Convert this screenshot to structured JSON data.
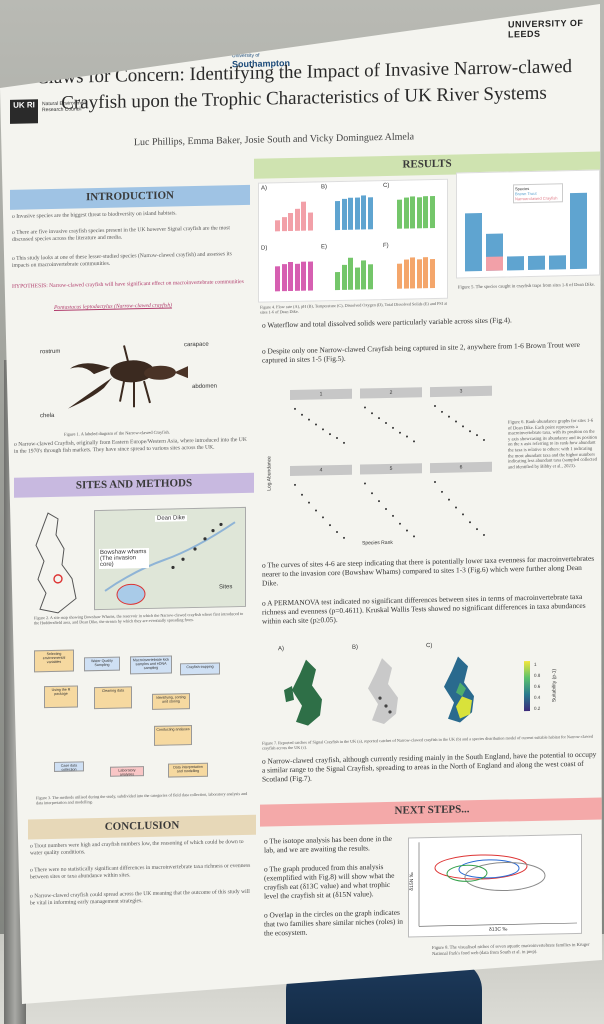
{
  "header": {
    "ukri": "UK RI",
    "nerc": "Natural Environment Research Council",
    "southampton_top": "University of",
    "southampton": "Southampton",
    "leeds": "UNIVERSITY OF LEEDS"
  },
  "title_line1": "Claws for Concern: Identifying the Impact of Invasive Narrow-clawed",
  "title_line2": "Crayfish upon the Trophic Characteristics of UK River Systems",
  "authors": "Luc Phillips, Emma Baker, Josie South and Vicky Dominguez Almela",
  "sections": {
    "introduction": "INTRODUCTION",
    "results": "RESULTS",
    "sites_methods": "SITES AND METHODS",
    "conclusion": "CONCLUSION",
    "next_steps": "NEXT STEPS..."
  },
  "intro": {
    "p1": "o Invasive species are the biggest threat to biodiversity on island habitats.",
    "p2": "o There are five invasive crayfish species present in the UK however Signal crayfish are the most discussed species across the literature and media.",
    "p3": "o This study looks at one of these lesser-studied species (Narrow-clawed crayfish) and assesses its impacts on macroinvertebrate communities.",
    "hypothesis": "HYPOTHESIS: Narrow-clawed crayfish will have significant effect on macroinvertebrate communities",
    "species": "Pontastacus leptodactylus (Narrow-clawed crayfish)",
    "labels": {
      "rostrum": "rostrum",
      "carapace": "carapace",
      "abdomen": "abdomen",
      "chela": "chela"
    },
    "fig1": "Figure 1. A labeled diagram of the Narrow-clawed Crayfish.",
    "p4": "o Narrow-clawed Crayfish, originally from Eastern Europe/Western Asia, where introduced into the UK in the 1970's through fish markets. They have since spread to various sites across the UK."
  },
  "sites": {
    "dean_dike": "Dean Dike",
    "bowshaw": "Bowshaw whams (The invasion core)",
    "sites_legend": "Sites",
    "fig2": "Figure 2. A site map showing Bowshaw Whams, the reservoir in which the Narrow-clawed crayfish where first introduced to the Huddersfield area, and Dean Dike, the stream by which they are eventually spreading from.",
    "flow_boxes": [
      "Selecting environmental variables",
      "Water Quality Sampling",
      "Macroinvertebrate kick samples and eDNA sampling",
      "Crayfish trapping",
      "Using the R package",
      "Cleaning data",
      "Identifying, sorting and storing",
      "Conducting analyses",
      "Data interpretation and modelling",
      "Case data collection",
      "Laboratory analyses"
    ],
    "fig3": "Figure 3. The methods utilised during the study, subdivided into the categories of field data collection, laboratory analysis and data interpretation and modelling."
  },
  "conclusion": {
    "p1": "o Trout numbers were high and crayfish numbers low, the reasoning of which could be down to water quality conditions.",
    "p2": "o There were no statistically significant differences in macroinvertebrate taxa richness or evenness between sites or taxa abundance within sites.",
    "p3": "o Narrow-clawed crayfish could spread across the UK meaning that the outcome of this study will be vital in informing early management strategies."
  },
  "results": {
    "fig4": "Figure 4. Flow rate (A), pH (B), Temperature (C), Dissolved Oxygen (D), Total Dissolved Solids (E) and PSI at sites 1-6 of Dean Dike.",
    "fig5": "Figure 5. The species caught in crayfish traps from sites 1-6 of Dean Dike.",
    "fig5_legend": [
      "Species",
      "Brown Trout",
      "Narrow-clawed Crayfish"
    ],
    "panel_letters": [
      "A)",
      "B)",
      "C)",
      "D)",
      "E)",
      "F)"
    ],
    "p1": "o Waterflow and total dissolved solids were particularly variable across sites (Fig.4).",
    "p2": "o Despite only one Narrow-clawed Crayfish being captured in site 2, anywhere from 1-6 Brown Trout were captured in sites 1-5 (Fig.5).",
    "rank_sites": [
      "1",
      "2",
      "3",
      "4",
      "5",
      "6"
    ],
    "rank_ylabel": "Log Abundance",
    "rank_xlabel": "Species Rank",
    "fig6": "Figure 6. Rank-abundance graphs for sites 1-6 of Dean Dike. Each point represents a macroinvertebrate taxa, with its position on the y axis showcasing its abundance and its position on the x axis referring to its rank-how abundant the taxa is relative to others: with 1 indicating the most abundant taxa and the higher numbers indicating less abundant taxa (sampled collected and identified by Bibby et al., 2023).",
    "p3": "o The curves of sites 4-6 are steep indicating that there is potentially lower taxa evenness for macroinvertebrates nearer to the invasion core (Bowshaw Whams) compared to sites 1-3 (Fig.6) which were further along Dean Dike.",
    "p4": "o A PERMANOVA test indicated no significant differences between sites in terms of macroinvertebrate taxa richness and evenness (p=0.4611). Kruskal Wallis Tests showed no significant differences in taxa abundances within each site (p≥0.05).",
    "map_letters": [
      "A)",
      "B)",
      "C)"
    ],
    "suitability_label": "Suitability (p-1)",
    "suitability_ticks": [
      "1",
      "0.8",
      "0.6",
      "0.4",
      "0.2"
    ],
    "fig7": "Figure 7. Reported catches of Signal Crayfish in the UK (a), reported catches of Narrow-clawed crayfish in the UK (b) and a species distribution model of current suitable habitat for Narrow-clawed crayfish across the UK (c).",
    "p5": "o Narrow-clawed crayfish, although currently residing mainly in the South England, have the potential to occupy a similar range to the Signal Crayfish, spreading to areas in the North of England and along the west coast of Scotland (Fig.7)."
  },
  "next_steps": {
    "p1": "o The isotope analysis has been done in the lab, and we are awaiting the results.",
    "p2": "o The graph produced from this analysis (exemplified with Fig.8) will show what the crayfish eat (δ13C value) and what trophic level the crayfish sit at (δ15N value).",
    "p3": "o Overlap in the circles on the graph indicates that two families share similar niches (roles) in the ecosystem.",
    "xlabel": "δ13C ‰",
    "ylabel": "δ15N ‰",
    "fig8": "Figure 8. The visualised niches of seven aquatic macroinvertebrate families in Kruger National Park's food web (data from South et al. in prep)."
  },
  "colors": {
    "intro": "#9fc3e4",
    "results": "#cfe3b0",
    "sites": "#c8b9e0",
    "conclusion": "#e7d8b8",
    "next": "#f4a9a9",
    "bar_pink": "#f2a0a8",
    "bar_blue": "#5fa4d0",
    "bar_green": "#74c66a",
    "bar_magenta": "#d65fb1",
    "bar_orange": "#f4a66b"
  }
}
